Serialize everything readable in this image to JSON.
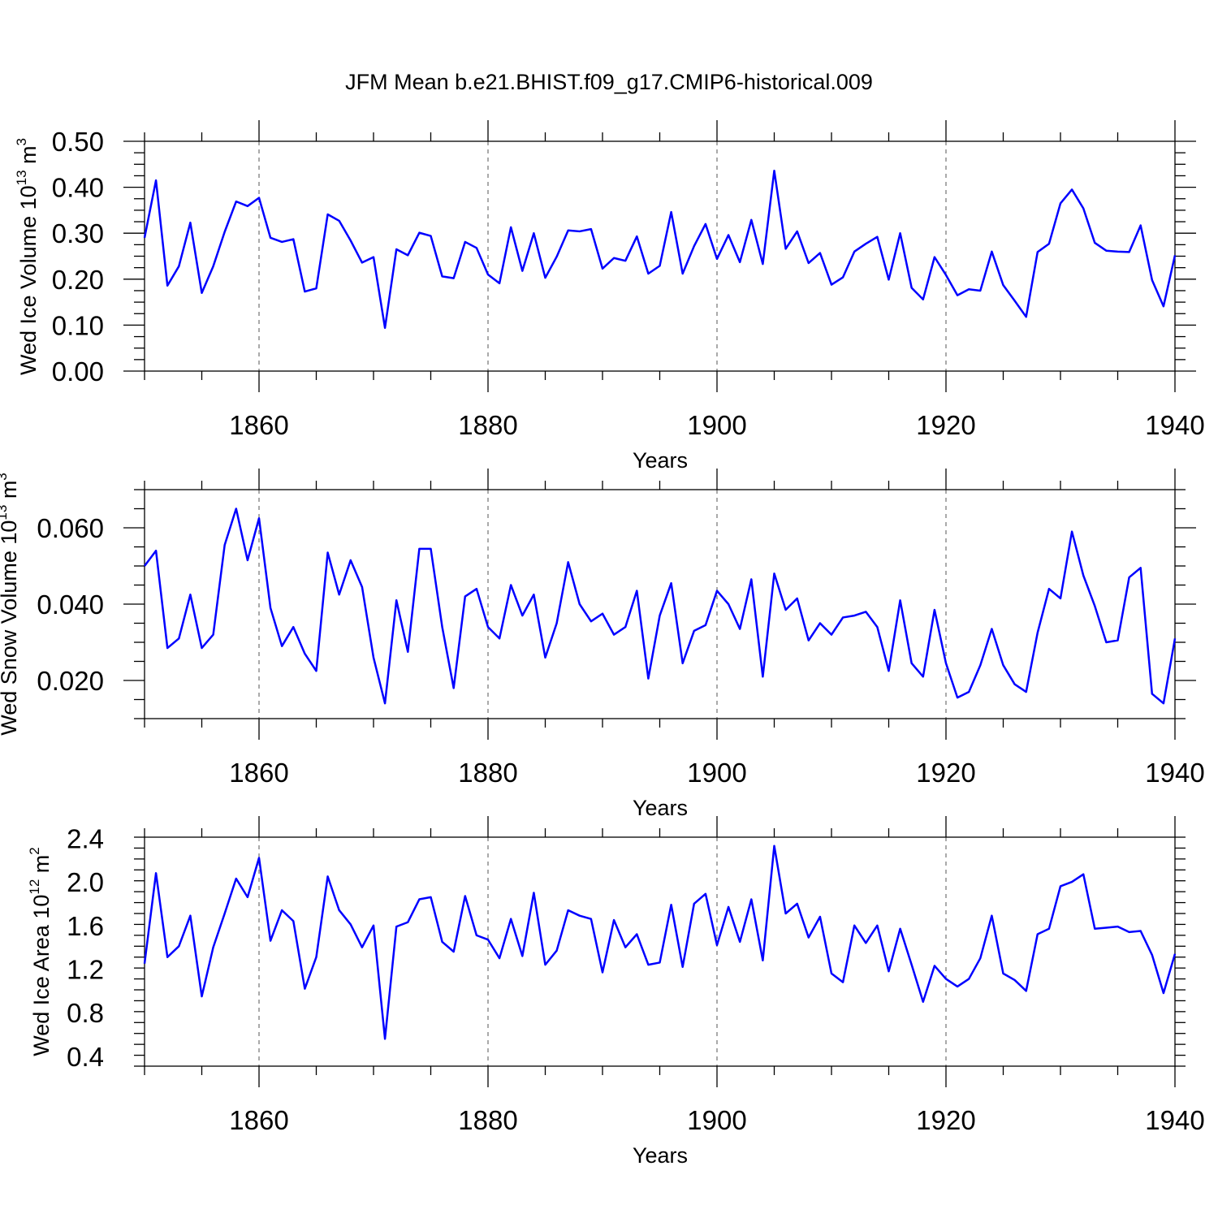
{
  "title": "JFM Mean b.e21.BHIST.f09_g17.CMIP6-historical.009",
  "chart_data": [
    {
      "type": "line",
      "ylabel": {
        "base": "Wed Ice Volume 10",
        "sup": "13",
        "mid": " m",
        "sup2": "3"
      },
      "xlabel": "Years",
      "xlim": [
        1850,
        1940
      ],
      "ylim": [
        0.0,
        0.5
      ],
      "x_major_ticks": [
        1860,
        1880,
        1900,
        1920,
        1940
      ],
      "x_tick_labels": [
        "1860",
        "1880",
        "1900",
        "1920",
        "1940"
      ],
      "y_major_ticks": [
        0.0,
        0.1,
        0.2,
        0.3,
        0.4,
        0.5
      ],
      "y_tick_labels": [
        "0.00",
        "0.10",
        "0.20",
        "0.30",
        "0.40",
        "0.50"
      ],
      "y_minor_step": 0.025,
      "grid": "dashed vertical at major x ticks",
      "color": "#0000ff",
      "x_start": 1850,
      "values": [
        0.29,
        0.415,
        0.186,
        0.228,
        0.323,
        0.17,
        0.228,
        0.303,
        0.369,
        0.359,
        0.377,
        0.29,
        0.281,
        0.287,
        0.173,
        0.18,
        0.341,
        0.327,
        0.284,
        0.236,
        0.248,
        0.094,
        0.265,
        0.252,
        0.301,
        0.294,
        0.206,
        0.202,
        0.281,
        0.268,
        0.21,
        0.191,
        0.313,
        0.218,
        0.3,
        0.203,
        0.249,
        0.306,
        0.304,
        0.309,
        0.223,
        0.246,
        0.24,
        0.293,
        0.212,
        0.229,
        0.346,
        0.212,
        0.272,
        0.32,
        0.244,
        0.296,
        0.237,
        0.329,
        0.233,
        0.436,
        0.266,
        0.304,
        0.235,
        0.257,
        0.188,
        0.204,
        0.26,
        0.277,
        0.292,
        0.199,
        0.3,
        0.181,
        0.156,
        0.248,
        0.209,
        0.165,
        0.178,
        0.175,
        0.26,
        0.187,
        0.153,
        0.118,
        0.259,
        0.277,
        0.365,
        0.395,
        0.354,
        0.279,
        0.262,
        0.26,
        0.259,
        0.317,
        0.198,
        0.141,
        0.252
      ]
    },
    {
      "type": "line",
      "ylabel": {
        "base": "Wed Snow Volume 10",
        "sup": "13",
        "mid": " m",
        "sup2": "3"
      },
      "xlabel": "Years",
      "xlim": [
        1850,
        1940
      ],
      "ylim": [
        0.01,
        0.07
      ],
      "x_major_ticks": [
        1860,
        1880,
        1900,
        1920,
        1940
      ],
      "x_tick_labels": [
        "1860",
        "1880",
        "1900",
        "1920",
        "1940"
      ],
      "y_major_ticks": [
        0.02,
        0.04,
        0.06
      ],
      "y_tick_labels": [
        "0.020",
        "0.040",
        "0.060"
      ],
      "y_minor_step": 0.005,
      "grid": "dashed vertical at major x ticks",
      "color": "#0000ff",
      "x_start": 1850,
      "values": [
        0.05,
        0.054,
        0.0285,
        0.031,
        0.0425,
        0.0285,
        0.032,
        0.0555,
        0.065,
        0.0515,
        0.0625,
        0.039,
        0.029,
        0.034,
        0.027,
        0.0225,
        0.0535,
        0.0425,
        0.0515,
        0.0445,
        0.026,
        0.014,
        0.041,
        0.0275,
        0.0545,
        0.0545,
        0.034,
        0.018,
        0.042,
        0.044,
        0.034,
        0.031,
        0.045,
        0.037,
        0.0425,
        0.026,
        0.035,
        0.051,
        0.04,
        0.0355,
        0.0375,
        0.032,
        0.034,
        0.0435,
        0.0205,
        0.037,
        0.0455,
        0.0245,
        0.033,
        0.0345,
        0.0435,
        0.04,
        0.0335,
        0.0465,
        0.021,
        0.048,
        0.0385,
        0.0415,
        0.0305,
        0.035,
        0.032,
        0.0365,
        0.037,
        0.038,
        0.034,
        0.0225,
        0.041,
        0.0245,
        0.021,
        0.0385,
        0.0245,
        0.0155,
        0.017,
        0.024,
        0.0335,
        0.024,
        0.019,
        0.017,
        0.0325,
        0.044,
        0.0415,
        0.059,
        0.0475,
        0.0395,
        0.03,
        0.0305,
        0.047,
        0.0495,
        0.0165,
        0.014,
        0.031
      ]
    },
    {
      "type": "line",
      "ylabel": {
        "base": "Wed Ice Area 10",
        "sup": "12",
        "mid": " m",
        "sup2": "2"
      },
      "xlabel": "Years",
      "xlim": [
        1850,
        1940
      ],
      "ylim": [
        0.31,
        2.41
      ],
      "x_major_ticks": [
        1860,
        1880,
        1900,
        1920,
        1940
      ],
      "x_tick_labels": [
        "1860",
        "1880",
        "1900",
        "1920",
        "1940"
      ],
      "y_major_ticks": [
        0.4,
        0.8,
        1.2,
        1.6,
        2.0,
        2.4
      ],
      "y_tick_labels": [
        "0.4",
        "0.8",
        "1.2",
        "1.6",
        "2.0",
        "2.4"
      ],
      "y_minor_step": 0.1,
      "grid": "dashed vertical at major x ticks",
      "color": "#0000ff",
      "x_start": 1850,
      "values": [
        1.25,
        2.08,
        1.31,
        1.41,
        1.69,
        0.95,
        1.4,
        1.71,
        2.03,
        1.86,
        2.22,
        1.46,
        1.74,
        1.64,
        1.02,
        1.31,
        2.05,
        1.74,
        1.61,
        1.4,
        1.6,
        0.56,
        1.59,
        1.63,
        1.84,
        1.86,
        1.45,
        1.36,
        1.87,
        1.51,
        1.47,
        1.3,
        1.66,
        1.32,
        1.9,
        1.24,
        1.37,
        1.74,
        1.69,
        1.66,
        1.17,
        1.65,
        1.4,
        1.52,
        1.24,
        1.26,
        1.79,
        1.22,
        1.8,
        1.89,
        1.42,
        1.77,
        1.45,
        1.84,
        1.28,
        2.33,
        1.71,
        1.8,
        1.49,
        1.68,
        1.16,
        1.08,
        1.6,
        1.44,
        1.6,
        1.18,
        1.57,
        1.24,
        0.9,
        1.23,
        1.11,
        1.04,
        1.11,
        1.3,
        1.69,
        1.16,
        1.1,
        1.0,
        1.52,
        1.57,
        1.96,
        2.0,
        2.07,
        1.57,
        1.58,
        1.59,
        1.54,
        1.55,
        1.33,
        0.98,
        1.34
      ]
    }
  ]
}
